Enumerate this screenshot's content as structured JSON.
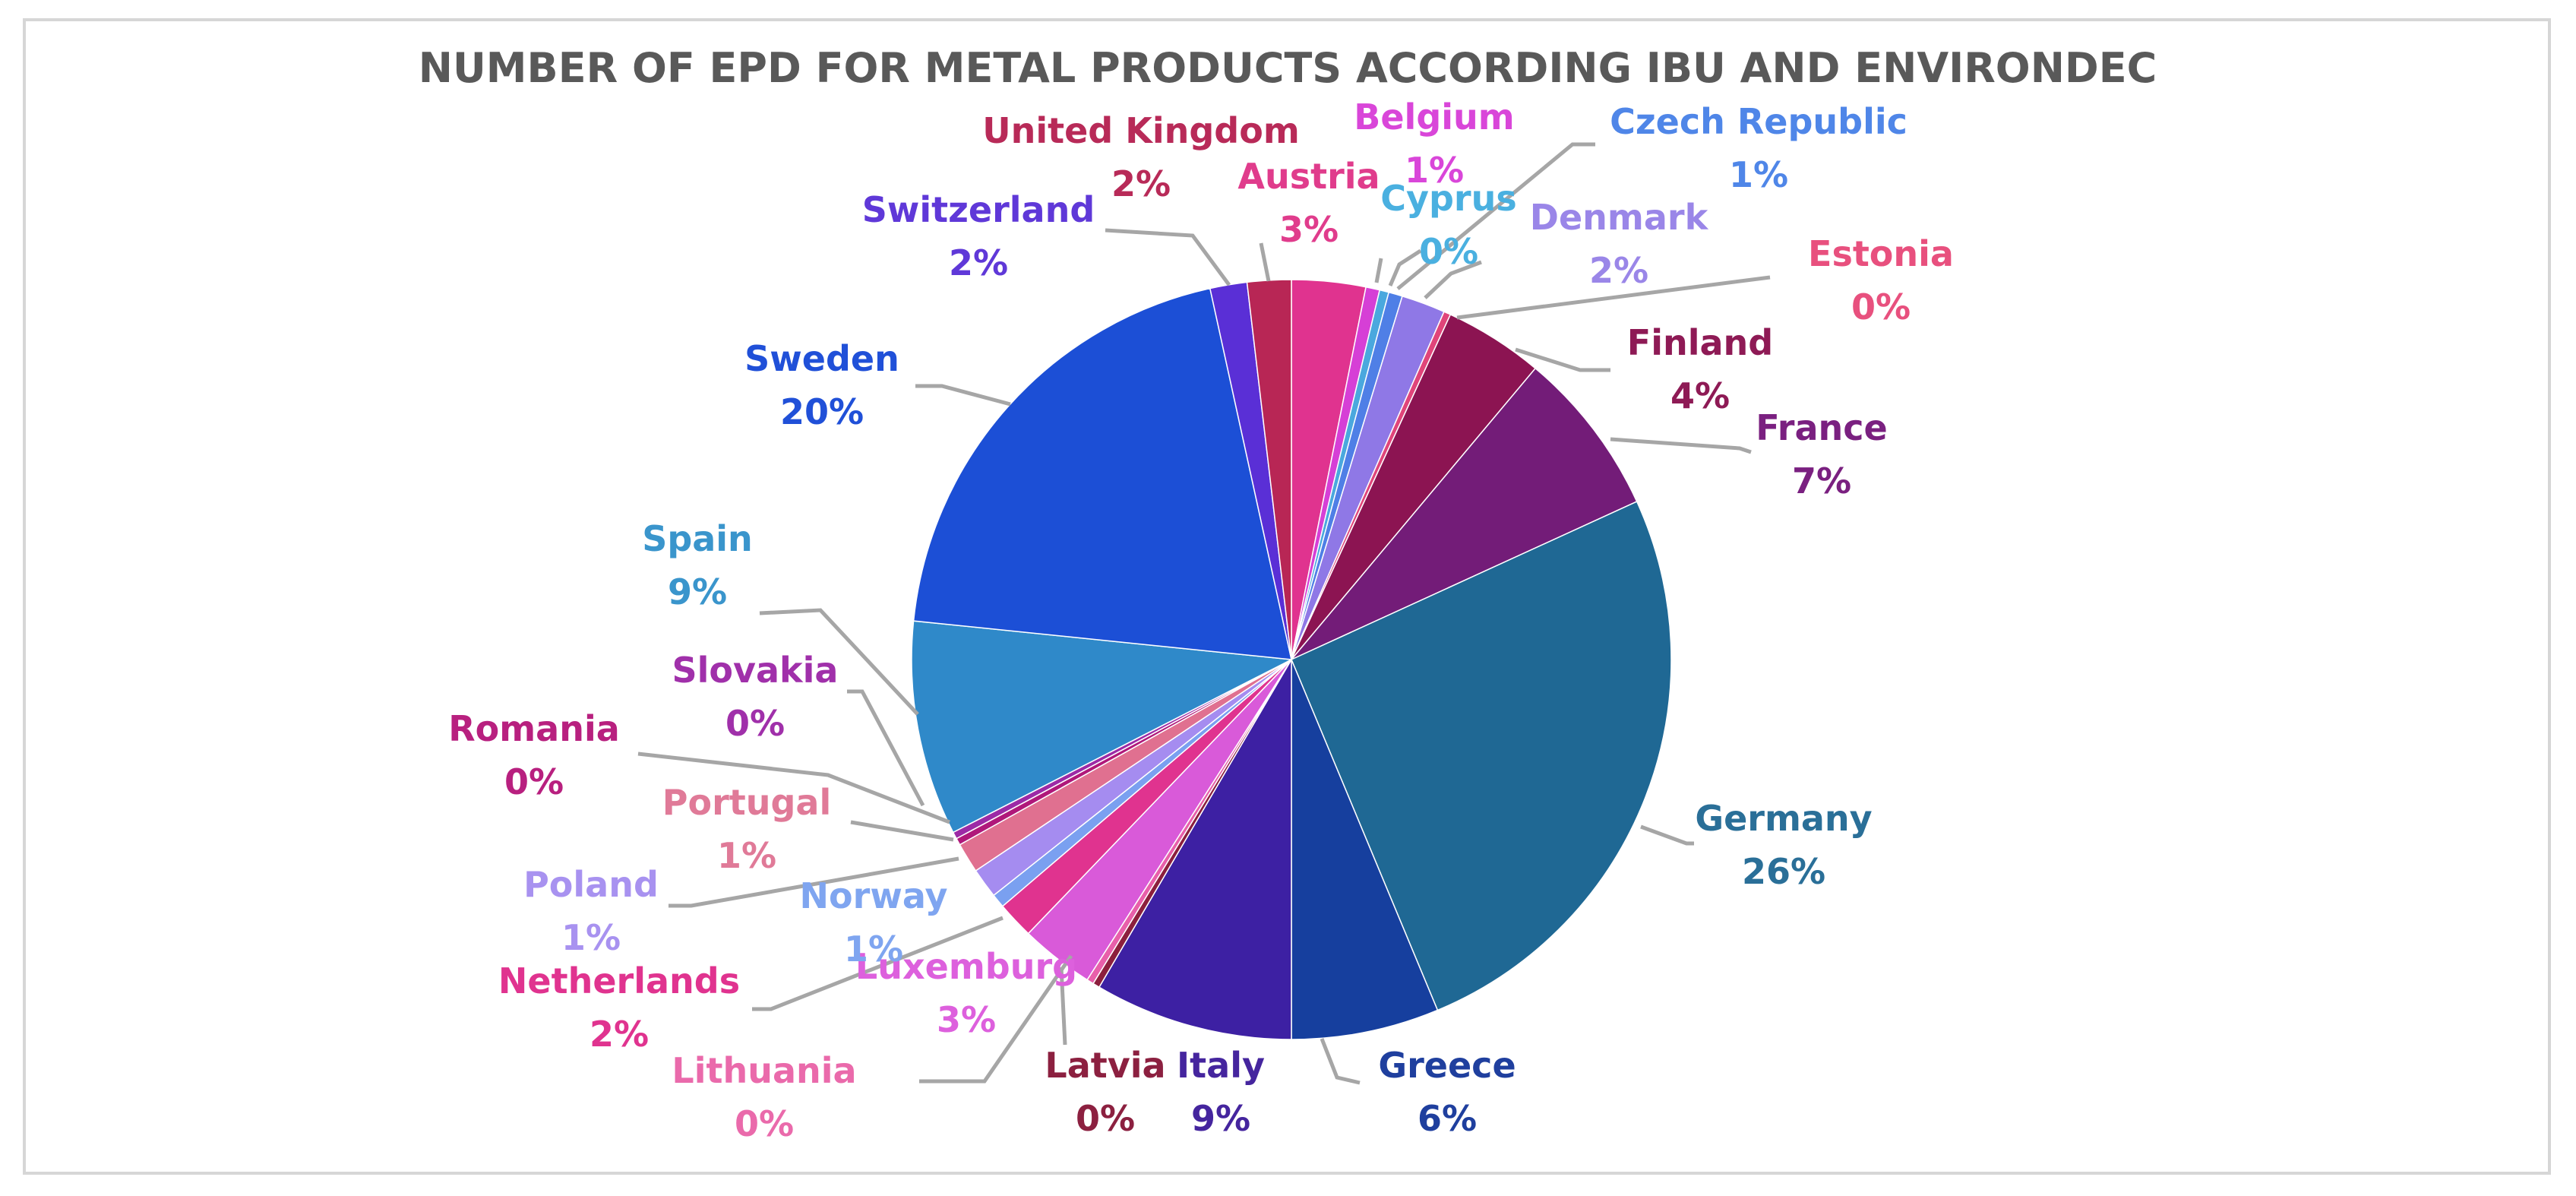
{
  "chart_data": {
    "type": "pie",
    "title": "NUMBER OF EPD FOR METAL PRODUCTS ACCORDING IBU AND ENVIRONDEC",
    "label_format": "{name}\n{percent}",
    "slices": [
      {
        "name": "Austria",
        "value": 3.2,
        "percent": "3%",
        "color": "#e0338f"
      },
      {
        "name": "Belgium",
        "value": 0.6,
        "percent": "1%",
        "color": "#d63fd6"
      },
      {
        "name": "Cyprus",
        "value": 0.4,
        "percent": "0%",
        "color": "#4aa8de"
      },
      {
        "name": "Czech Republic",
        "value": 0.6,
        "percent": "1%",
        "color": "#4f7fe6"
      },
      {
        "name": "Denmark",
        "value": 1.9,
        "percent": "2%",
        "color": "#8f78e6"
      },
      {
        "name": "Estonia",
        "value": 0.3,
        "percent": "0%",
        "color": "#e0457a"
      },
      {
        "name": "Finland",
        "value": 4.3,
        "percent": "4%",
        "color": "#8c1452"
      },
      {
        "name": "France",
        "value": 7.2,
        "percent": "7%",
        "color": "#731c78"
      },
      {
        "name": "Germany",
        "value": 26,
        "percent": "26%",
        "color": "#1f6894"
      },
      {
        "name": "Greece",
        "value": 6.4,
        "percent": "6%",
        "color": "#163f9e"
      },
      {
        "name": "Italy",
        "value": 8.6,
        "percent": "9%",
        "color": "#3d20a3"
      },
      {
        "name": "Latvia",
        "value": 0.3,
        "percent": "0%",
        "color": "#8c1f3d"
      },
      {
        "name": "Lithuania",
        "value": 0.3,
        "percent": "0%",
        "color": "#e85faa"
      },
      {
        "name": "Luxemburg",
        "value": 3.2,
        "percent": "3%",
        "color": "#d95ad9"
      },
      {
        "name": "Netherlands",
        "value": 1.6,
        "percent": "2%",
        "color": "#e0338f"
      },
      {
        "name": "Norway",
        "value": 0.6,
        "percent": "1%",
        "color": "#7aa0f0"
      },
      {
        "name": "Poland",
        "value": 1.3,
        "percent": "1%",
        "color": "#a58cf0"
      },
      {
        "name": "Portugal",
        "value": 1.3,
        "percent": "1%",
        "color": "#e07090"
      },
      {
        "name": "Romania",
        "value": 0.3,
        "percent": "0%",
        "color": "#b0187a"
      },
      {
        "name": "Slovakia",
        "value": 0.3,
        "percent": "0%",
        "color": "#9c2aa6"
      },
      {
        "name": "Spain",
        "value": 9.3,
        "percent": "9%",
        "color": "#2f89c9"
      },
      {
        "name": "Sweden",
        "value": 20.3,
        "percent": "20%",
        "color": "#1c4fd6"
      },
      {
        "name": "Switzerland",
        "value": 1.6,
        "percent": "2%",
        "color": "#5a2fd6"
      },
      {
        "name": "United Kingdom",
        "value": 1.9,
        "percent": "2%",
        "color": "#b82655"
      }
    ],
    "label_colors": {
      "Austria": "#e03c8c",
      "Belgium": "#d946d9",
      "Cyprus": "#4ab0e0",
      "Czech Republic": "#4f86e8",
      "Denmark": "#9a86e8",
      "Estonia": "#e8507e",
      "Finland": "#8e1a55",
      "France": "#7a2080",
      "Germany": "#2a6f98",
      "Greece": "#1f3f9e",
      "Italy": "#45259e",
      "Latvia": "#8c2040",
      "Lithuania": "#ea6aab",
      "Luxemburg": "#dd60dd",
      "Netherlands": "#e0338f",
      "Norway": "#7fa5f0",
      "Poland": "#a892f0",
      "Portugal": "#e07a98",
      "Romania": "#b8207f",
      "Slovakia": "#a030aa",
      "Spain": "#3a95cc",
      "Sweden": "#2050d8",
      "Switzerland": "#5f38d8",
      "United Kingdom": "#b82a58"
    }
  }
}
